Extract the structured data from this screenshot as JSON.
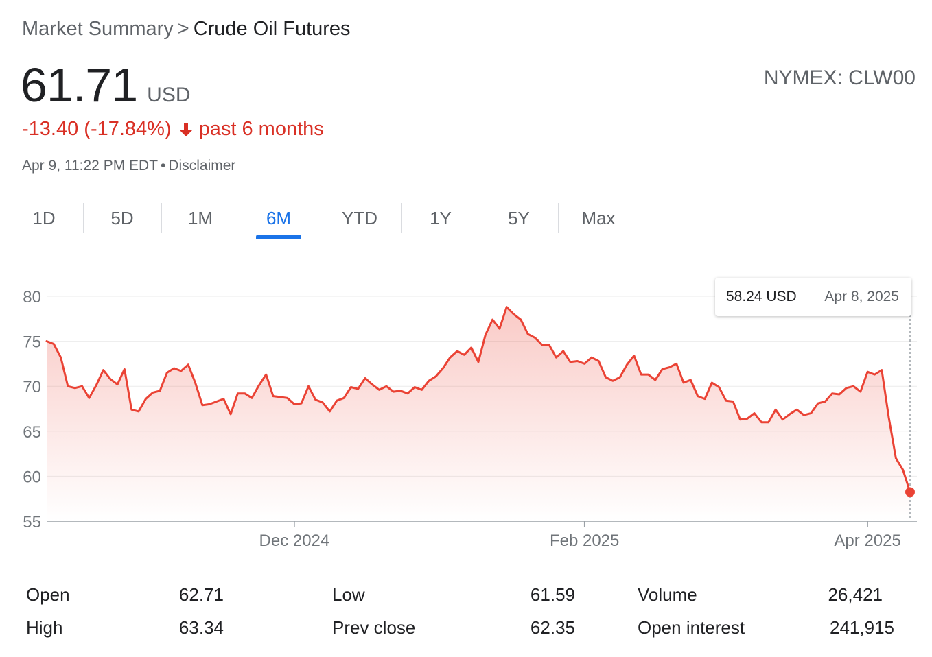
{
  "breadcrumb": {
    "root": "Market Summary",
    "separator": ">",
    "current": "Crude Oil Futures"
  },
  "quote": {
    "price": "61.71",
    "currency": "USD",
    "exchange_ticker": "NYMEX: CLW00",
    "change": "-13.40 (-17.84%)",
    "change_period": "past 6 months",
    "change_color": "#d93025",
    "timestamp": "Apr 9, 11:22 PM EDT",
    "timestamp_separator": "•",
    "disclaimer": "Disclaimer"
  },
  "tabs": [
    {
      "label": "1D",
      "active": false
    },
    {
      "label": "5D",
      "active": false
    },
    {
      "label": "1M",
      "active": false
    },
    {
      "label": "6M",
      "active": true
    },
    {
      "label": "YTD",
      "active": false
    },
    {
      "label": "1Y",
      "active": false
    },
    {
      "label": "5Y",
      "active": false
    },
    {
      "label": "Max",
      "active": false
    }
  ],
  "tooltip": {
    "price": "58.24 USD",
    "date": "Apr 8, 2025"
  },
  "chart_data": {
    "type": "area",
    "series": [
      {
        "values": [
          75.0,
          74.7,
          73.2,
          70.0,
          69.8,
          70.0,
          68.7,
          70.1,
          71.8,
          70.8,
          70.2,
          71.9,
          67.4,
          67.2,
          68.6,
          69.3,
          69.5,
          71.5,
          72.0,
          71.7,
          72.4,
          70.4,
          67.9,
          68.0,
          68.3,
          68.6,
          66.9,
          69.2,
          69.2,
          68.7,
          70.1,
          71.3,
          68.9,
          68.8,
          68.7,
          68.0,
          68.1,
          70.0,
          68.5,
          68.2,
          67.2,
          68.4,
          68.7,
          69.9,
          69.7,
          70.9,
          70.2,
          69.6,
          70.0,
          69.4,
          69.5,
          69.2,
          69.9,
          69.6,
          70.6,
          71.1,
          72.0,
          73.2,
          73.9,
          73.5,
          74.3,
          72.7,
          75.7,
          77.4,
          76.4,
          78.8,
          78.0,
          77.4,
          75.8,
          75.4,
          74.6,
          74.6,
          73.2,
          73.9,
          72.7,
          72.8,
          72.5,
          73.2,
          72.8,
          71.0,
          70.6,
          71.0,
          72.4,
          73.4,
          71.3,
          71.3,
          70.7,
          71.9,
          72.1,
          72.5,
          70.4,
          70.7,
          68.9,
          68.6,
          70.4,
          69.9,
          68.4,
          68.3,
          66.3,
          66.4,
          67.0,
          66.0,
          66.0,
          67.4,
          66.3,
          66.9,
          67.4,
          66.8,
          67.0,
          68.1,
          68.3,
          69.2,
          69.1,
          69.8,
          70.0,
          69.4,
          71.6,
          71.3,
          71.8,
          66.5,
          62.0,
          60.7,
          58.24
        ]
      }
    ],
    "x_ticks": [
      "Dec 2024",
      "Feb 2025",
      "Apr 2025"
    ],
    "y_ticks": [
      80,
      75,
      70,
      65,
      60,
      55
    ],
    "ylim": [
      55,
      80
    ],
    "grid": true,
    "line_color": "#ea4335",
    "fill_color": "#ea4335",
    "highlight_last_point": true
  },
  "stats": [
    {
      "label": "Open",
      "value": "62.71"
    },
    {
      "label": "High",
      "value": "63.34"
    },
    {
      "label": "Low",
      "value": "61.59"
    },
    {
      "label": "Prev close",
      "value": "62.35"
    },
    {
      "label": "Volume",
      "value": "26,421"
    },
    {
      "label": "Open interest",
      "value": "241,915"
    }
  ]
}
